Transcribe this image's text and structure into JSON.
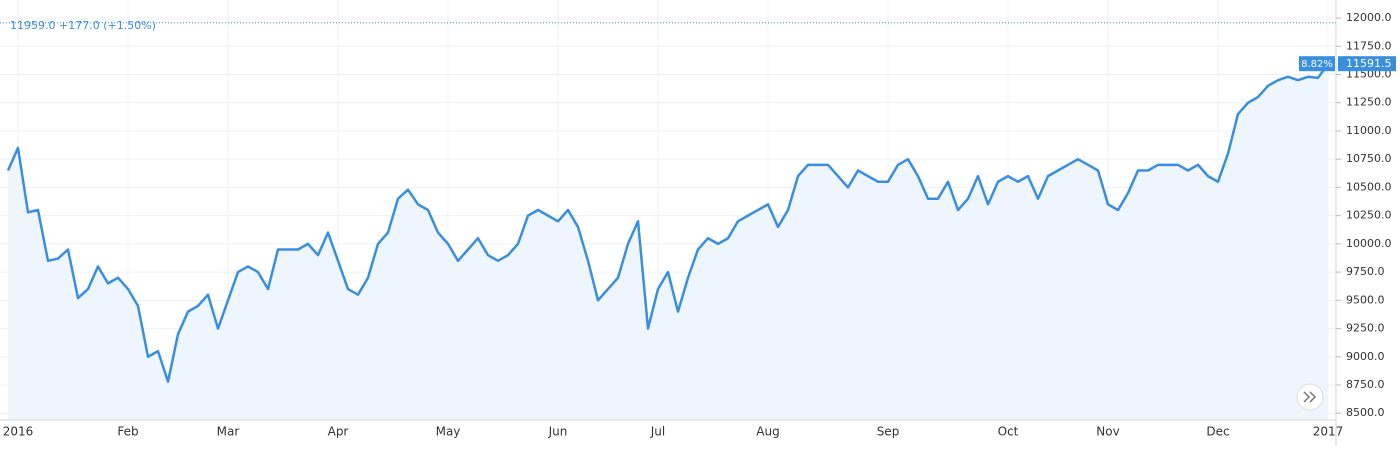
{
  "chart_data": {
    "type": "line",
    "header": "11959.0  +177.0 (+1.50%)",
    "reference_line": 11959.0,
    "change_label": "8.82%",
    "last_label": "11591.5",
    "color": "#3a8ede",
    "grid": true,
    "categories": [
      null,
      "2016",
      null,
      null,
      null,
      null,
      null,
      null,
      null,
      null,
      null,
      null,
      "Feb",
      null,
      null,
      null,
      null,
      null,
      null,
      null,
      null,
      null,
      "Mar",
      null,
      null,
      null,
      null,
      null,
      null,
      null,
      null,
      null,
      null,
      "Apr",
      null,
      null,
      null,
      null,
      null,
      null,
      null,
      null,
      null,
      null,
      "May",
      null,
      null,
      null,
      null,
      null,
      null,
      null,
      null,
      null,
      null,
      "Jun",
      null,
      null,
      null,
      null,
      null,
      null,
      null,
      null,
      null,
      "Jul",
      null,
      null,
      null,
      null,
      null,
      null,
      null,
      null,
      null,
      null,
      "Aug",
      null,
      null,
      null,
      null,
      null,
      null,
      null,
      null,
      null,
      null,
      null,
      "Sep",
      null,
      null,
      null,
      null,
      null,
      null,
      null,
      null,
      null,
      null,
      null,
      "Oct",
      null,
      null,
      null,
      null,
      null,
      null,
      null,
      null,
      null,
      "Nov",
      null,
      null,
      null,
      null,
      null,
      null,
      null,
      null,
      null,
      null,
      "Dec",
      null,
      null,
      null,
      null,
      null,
      null,
      null,
      null,
      null,
      null,
      "2017"
    ],
    "values": [
      10650,
      10850,
      10280,
      10300,
      9850,
      9870,
      9950,
      9520,
      9600,
      9800,
      9650,
      9700,
      9600,
      9450,
      9000,
      9050,
      8780,
      9200,
      9400,
      9450,
      9550,
      9250,
      9500,
      9750,
      9800,
      9750,
      9600,
      9950,
      9950,
      9950,
      10000,
      9900,
      10100,
      9850,
      9600,
      9550,
      9700,
      10000,
      10100,
      10400,
      10480,
      10350,
      10300,
      10100,
      10000,
      9850,
      9950,
      10050,
      9900,
      9850,
      9900,
      10000,
      10250,
      10300,
      10250,
      10200,
      10300,
      10150,
      9850,
      9500,
      9600,
      9700,
      10000,
      10200,
      9250,
      9600,
      9750,
      9400,
      9700,
      9950,
      10050,
      10000,
      10050,
      10200,
      10250,
      10300,
      10350,
      10150,
      10300,
      10600,
      10700,
      10700,
      10700,
      10600,
      10500,
      10650,
      10600,
      10550,
      10550,
      10700,
      10750,
      10600,
      10400,
      10400,
      10550,
      10300,
      10400,
      10600,
      10350,
      10550,
      10600,
      10550,
      10600,
      10400,
      10600,
      10650,
      10700,
      10750,
      10700,
      10650,
      10350,
      10300,
      10450,
      10650,
      10650,
      10700,
      10700,
      10700,
      10650,
      10700,
      10600,
      10550,
      10800,
      11150,
      11250,
      11300,
      11400,
      11450,
      11480,
      11450,
      11480,
      11470,
      11591.5
    ],
    "ylim": [
      8440,
      12160
    ],
    "yticks": [
      {
        "value": 8500,
        "label": "8500.0"
      },
      {
        "value": 8750,
        "label": "8750.0"
      },
      {
        "value": 9000,
        "label": "9000.0"
      },
      {
        "value": 9250,
        "label": "9250.0"
      },
      {
        "value": 9500,
        "label": "9500.0"
      },
      {
        "value": 9750,
        "label": "9750.0"
      },
      {
        "value": 10000,
        "label": "10000.0"
      },
      {
        "value": 10250,
        "label": "10250.0"
      },
      {
        "value": 10500,
        "label": "10500.0"
      },
      {
        "value": 10750,
        "label": "10750.0"
      },
      {
        "value": 11000,
        "label": "11000.0"
      },
      {
        "value": 11250,
        "label": "11250.0"
      },
      {
        "value": 11500,
        "label": "11500.0"
      },
      {
        "value": 11750,
        "label": "11750.0"
      },
      {
        "value": 12000,
        "label": "12000.0"
      }
    ]
  }
}
